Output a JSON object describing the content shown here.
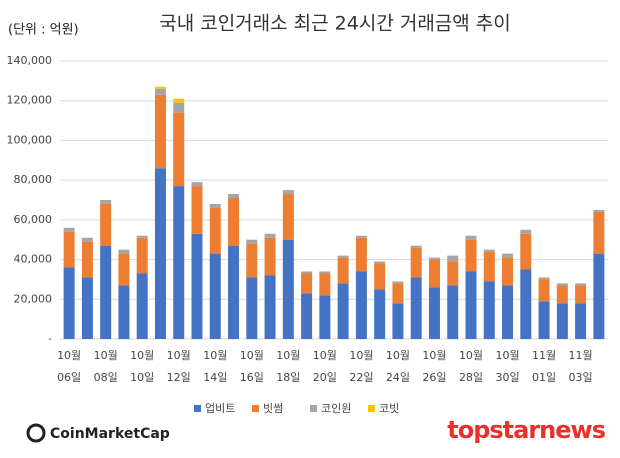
{
  "chart_data": {
    "type": "stacked_bar",
    "title": "국내 코인거래소 최근 24시간 거래금액 추이",
    "unit_note": "(단위 : 억원)",
    "source": "CoinMarketCap",
    "watermark": "topstarnews",
    "categories": [
      [
        "10월",
        "06일"
      ],
      null,
      [
        "10월",
        "08일"
      ],
      null,
      [
        "10월",
        "10일"
      ],
      null,
      [
        "10월",
        "12일"
      ],
      null,
      [
        "10월",
        "14일"
      ],
      null,
      [
        "10월",
        "16일"
      ],
      null,
      [
        "10월",
        "18일"
      ],
      null,
      [
        "10월",
        "20일"
      ],
      null,
      [
        "10월",
        "22일"
      ],
      null,
      [
        "10월",
        "24일"
      ],
      null,
      [
        "10월",
        "26일"
      ],
      null,
      [
        "10월",
        "28일"
      ],
      null,
      [
        "10월",
        "30일"
      ],
      null,
      [
        "11월",
        "01일"
      ],
      null,
      [
        "11월",
        "03일"
      ],
      null
    ],
    "series": [
      {
        "name": "업비트",
        "color": "#4472c4",
        "values": [
          36000,
          31000,
          47000,
          27000,
          33000,
          86000,
          77000,
          53000,
          43000,
          47000,
          31000,
          32000,
          50000,
          23000,
          22000,
          28000,
          34000,
          25000,
          18000,
          31000,
          26000,
          27000,
          34000,
          29000,
          27000,
          35000,
          19000,
          18000,
          18000,
          43000
        ]
      },
      {
        "name": "빗썸",
        "color": "#ed7d31",
        "values": [
          18000,
          18000,
          21000,
          16000,
          18000,
          37000,
          37000,
          24000,
          23000,
          24000,
          17000,
          19000,
          23000,
          10000,
          11000,
          13000,
          17000,
          13000,
          10000,
          15000,
          14000,
          12000,
          16000,
          15000,
          14000,
          18000,
          11000,
          9000,
          9000,
          21000
        ]
      },
      {
        "name": "코인원",
        "color": "#a5a5a5",
        "values": [
          2000,
          2000,
          2000,
          2000,
          1000,
          3000,
          5000,
          2000,
          2000,
          2000,
          2000,
          2000,
          2000,
          1000,
          1000,
          1000,
          1000,
          1000,
          1000,
          1000,
          1000,
          3000,
          2000,
          1000,
          2000,
          2000,
          1000,
          1000,
          1000,
          1000
        ]
      },
      {
        "name": "코빗",
        "color": "#ffc000",
        "values": [
          0,
          0,
          0,
          0,
          0,
          1000,
          2000,
          0,
          0,
          0,
          0,
          0,
          0,
          0,
          0,
          0,
          0,
          0,
          0,
          0,
          0,
          0,
          0,
          0,
          0,
          0,
          0,
          0,
          0,
          0
        ]
      }
    ],
    "ylim": [
      0,
      140000
    ],
    "yticks": [
      {
        "value": 0,
        "label": "-"
      },
      {
        "value": 20000,
        "label": "20,000"
      },
      {
        "value": 40000,
        "label": "40,000"
      },
      {
        "value": 60000,
        "label": "60,000"
      },
      {
        "value": 80000,
        "label": "80,000"
      },
      {
        "value": 100000,
        "label": "100,000"
      },
      {
        "value": 120000,
        "label": "120,000"
      },
      {
        "value": 140000,
        "label": "140,000"
      }
    ],
    "grid": true,
    "legend": "bottom"
  }
}
